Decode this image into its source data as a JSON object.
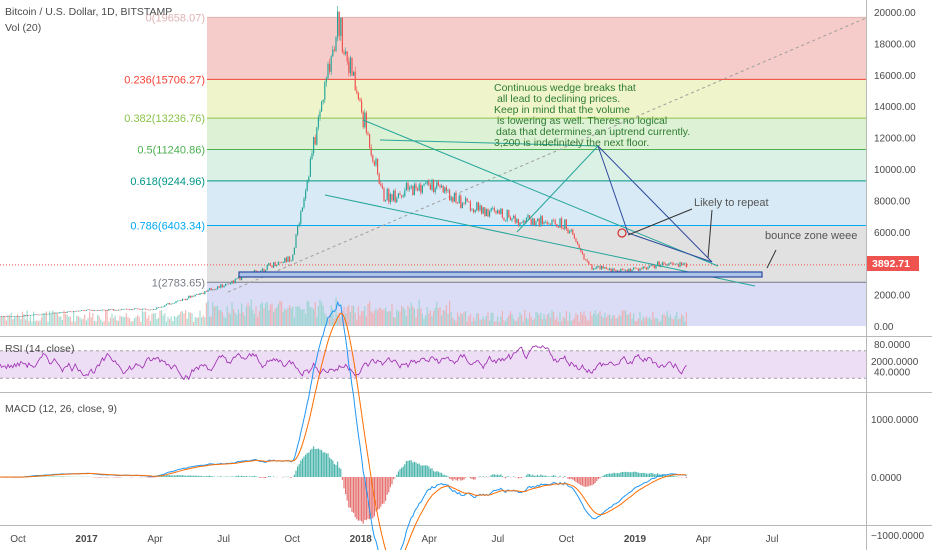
{
  "header": {
    "symbol_line": "Bitcoin / U.S. Dollar, 1D, BITSTAMP",
    "volume_label": "Vol (20)"
  },
  "price_tag": "3892.71",
  "colors": {
    "bull": "#26a69a",
    "bear": "#ef5350",
    "price_line": "#ef5350",
    "rsi": "#9c27b0",
    "macd": "#2196f3",
    "signal": "#ff6d00",
    "wedge": "#26a69a",
    "pattern": "#2e4a9e"
  },
  "annotations": {
    "wedge_note": [
      "Continuous wedge breaks that",
      "all lead to declining prices.",
      "Keep in mind that the volume",
      "is lowering as well. Theres no logical",
      "data that determines an uptrend currently.",
      "3,200 is indefinitely the next floor."
    ],
    "likely_repeat": "Likely to repeat",
    "bounce_zone": "bounce zone weee"
  },
  "chart_data": [
    {
      "type": "line",
      "panel": "price",
      "title": "Bitcoin / U.S. Dollar, 1D, BITSTAMP",
      "y_ticks": [
        "20000.00",
        "18000.00",
        "16000.00",
        "14000.00",
        "12000.00",
        "10000.00",
        "8000.00",
        "6000.00",
        "4000.00",
        "2000.00",
        "0.00"
      ],
      "ylim": [
        0,
        20000
      ],
      "last_price": 3892.71,
      "x": [
        "2016-10",
        "2017-01",
        "2017-04",
        "2017-07",
        "2017-10",
        "2017-12",
        "2018-02",
        "2018-04",
        "2018-06",
        "2018-08",
        "2018-10",
        "2018-11",
        "2018-12",
        "2019-01",
        "2019-02",
        "2019-03"
      ],
      "series": [
        {
          "values": [
            620,
            1000,
            1100,
            2600,
            4400,
            19500,
            8200,
            9000,
            7500,
            6800,
            6400,
            3800,
            3500,
            3600,
            3900,
            3890
          ]
        }
      ],
      "fib_levels": [
        {
          "label": "0(19658.07)",
          "price": 19658.07,
          "color": "#e0b3b3"
        },
        {
          "label": "0.236(15706.27)",
          "price": 15706.27,
          "color": "#f44336"
        },
        {
          "label": "0.382(13236.76)",
          "price": 13236.76,
          "color": "#8bc34a"
        },
        {
          "label": "0.5(11240.86)",
          "price": 11240.86,
          "color": "#4caf50"
        },
        {
          "label": "0.618(9244.96)",
          "price": 9244.96,
          "color": "#009688"
        },
        {
          "label": "0.786(6403.34)",
          "price": 6403.34,
          "color": "#03a9f4"
        },
        {
          "label": "1(2783.65)",
          "price": 2783.65,
          "color": "#787b86"
        }
      ]
    },
    {
      "type": "line",
      "panel": "rsi",
      "title": "RSI (14, close)",
      "y_ticks": [
        "80.0000",
        "40.0000"
      ],
      "band": [
        30,
        70
      ]
    },
    {
      "type": "line",
      "panel": "macd",
      "title": "MACD (12, 26, close, 9)",
      "y_ticks": [
        "2000.0000",
        "1000.0000",
        "0.0000",
        "−1000.0000"
      ],
      "ylim": [
        -1200,
        2500
      ]
    },
    {
      "type": "axis",
      "panel": "time",
      "x_ticks": [
        "Oct",
        "2017",
        "Apr",
        "Jul",
        "Oct",
        "2018",
        "Apr",
        "Jul",
        "Oct",
        "2019",
        "Apr",
        "Jul"
      ]
    }
  ]
}
